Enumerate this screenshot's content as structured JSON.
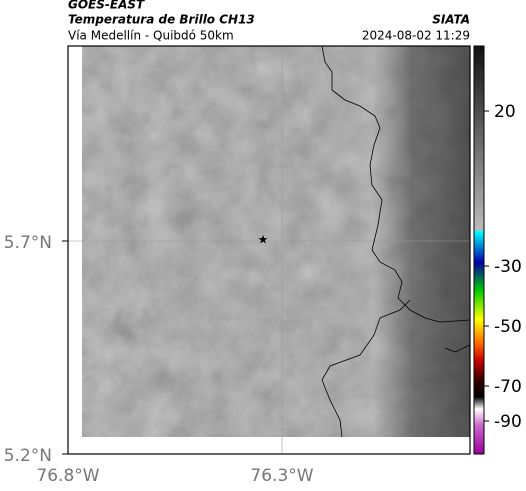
{
  "header": {
    "product": "GOES-EAST",
    "title": "Temperatura de Brillo CH13",
    "subtitle": "Vía Medellín - Quibdó 50km",
    "agency": "SIATA",
    "timestamp": "2024-08-02 11:29"
  },
  "map": {
    "lat_ticks": [
      "5.7°N",
      "5.2°N"
    ],
    "lon_ticks": [
      "76.8°W",
      "76.3°W"
    ]
  },
  "colorbar": {
    "ticks": [
      20,
      -30,
      -50,
      -70,
      -90
    ]
  }
}
